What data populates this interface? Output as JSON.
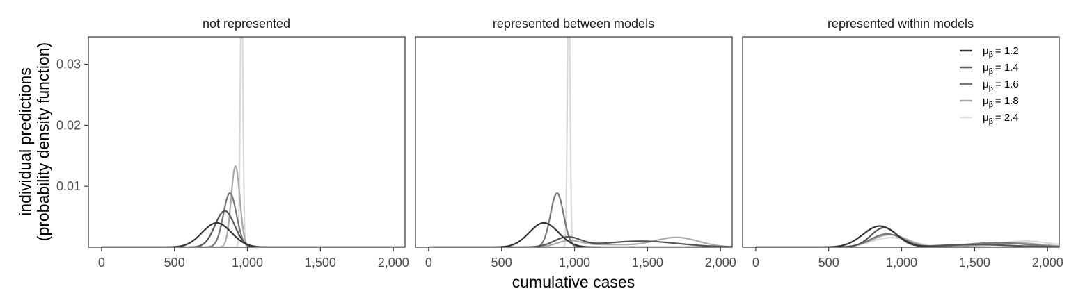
{
  "chart_data": {
    "type": "line",
    "xlabel": "cumulative cases",
    "ylabel_lines": [
      "individual predictions",
      "(probability density function)"
    ],
    "xlim": [
      -90,
      2080
    ],
    "ylim": [
      0,
      0.0345
    ],
    "x_ticks": [
      0,
      500,
      1000,
      1500,
      2000
    ],
    "x_tick_labels": [
      "0",
      "500",
      "1,000",
      "1,500",
      "2,000"
    ],
    "y_ticks": [
      0.01,
      0.02,
      0.03
    ],
    "y_tick_labels": [
      "0.01",
      "0.02",
      "0.03"
    ],
    "grid": false,
    "legend_position": "top-right",
    "legend": {
      "symbol": "μ",
      "subscript": "β",
      "entries": [
        "= 1.2",
        "= 1.4",
        "= 1.6",
        "= 1.8",
        "= 2.4"
      ]
    },
    "series_colors": [
      "#333333",
      "#555555",
      "#777777",
      "#aaaaaa",
      "#d9d9d9"
    ],
    "panels": [
      {
        "title": "not represented",
        "series": [
          {
            "components": [
              {
                "w": 1.0,
                "mu": 790,
                "sd": 100
              }
            ]
          },
          {
            "components": [
              {
                "w": 1.0,
                "mu": 845,
                "sd": 67
              }
            ]
          },
          {
            "components": [
              {
                "w": 1.0,
                "mu": 880,
                "sd": 45
              }
            ]
          },
          {
            "components": [
              {
                "w": 1.0,
                "mu": 918,
                "sd": 30
              }
            ]
          },
          {
            "components": [
              {
                "w": 1.0,
                "mu": 960,
                "sd": 9
              }
            ]
          }
        ]
      },
      {
        "title": "represented between models",
        "series": [
          {
            "components": [
              {
                "w": 1.0,
                "mu": 790,
                "sd": 100
              }
            ]
          },
          {
            "components": [
              {
                "w": 0.35,
                "mu": 950,
                "sd": 90
              },
              {
                "w": 0.65,
                "mu": 1450,
                "sd": 260
              }
            ]
          },
          {
            "components": [
              {
                "w": 1.0,
                "mu": 880,
                "sd": 45
              }
            ]
          },
          {
            "components": [
              {
                "w": 0.18,
                "mu": 960,
                "sd": 80
              },
              {
                "w": 0.22,
                "mu": 1200,
                "sd": 200
              },
              {
                "w": 0.6,
                "mu": 1700,
                "sd": 150
              }
            ]
          },
          {
            "components": [
              {
                "w": 1.0,
                "mu": 960,
                "sd": 9
              }
            ]
          }
        ]
      },
      {
        "title": "represented within models",
        "series": [
          {
            "components": [
              {
                "w": 1.0,
                "mu": 850,
                "sd": 115
              }
            ]
          },
          {
            "components": [
              {
                "w": 0.72,
                "mu": 880,
                "sd": 90
              },
              {
                "w": 0.28,
                "mu": 1500,
                "sd": 260
              }
            ]
          },
          {
            "components": [
              {
                "w": 0.6,
                "mu": 900,
                "sd": 110
              },
              {
                "w": 0.4,
                "mu": 1650,
                "sd": 220
              }
            ]
          },
          {
            "components": [
              {
                "w": 0.62,
                "mu": 920,
                "sd": 120
              },
              {
                "w": 0.38,
                "mu": 1750,
                "sd": 200
              }
            ]
          },
          {
            "components": [
              {
                "w": 0.55,
                "mu": 930,
                "sd": 140
              },
              {
                "w": 0.45,
                "mu": 1850,
                "sd": 180
              }
            ]
          }
        ]
      }
    ]
  }
}
